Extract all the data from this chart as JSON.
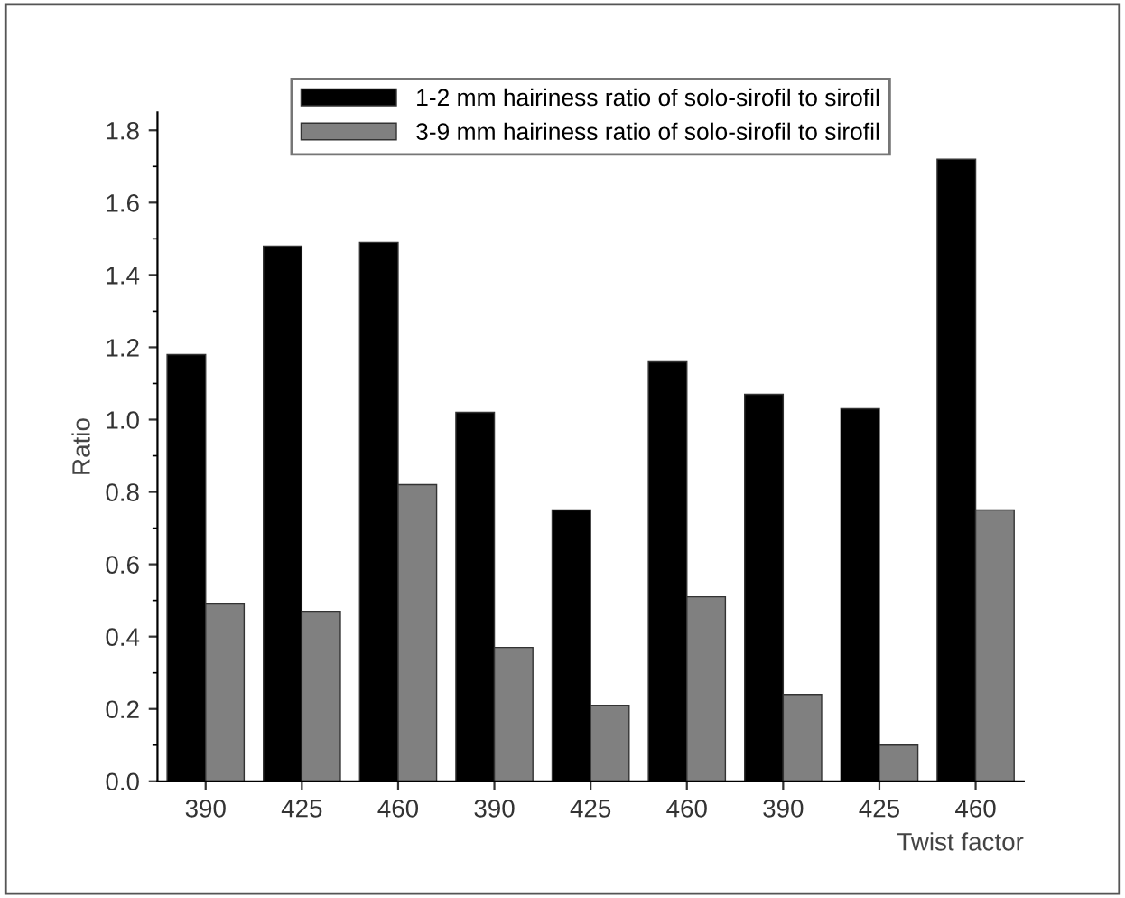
{
  "chart_data": {
    "type": "bar",
    "xlabel": "Twist factor",
    "ylabel": "Ratio",
    "categories": [
      "390",
      "425",
      "460",
      "390",
      "425",
      "460",
      "390",
      "425",
      "460"
    ],
    "series": [
      {
        "name": "1-2 mm hairiness ratio of solo-sirofil to sirofil",
        "color": "#000000",
        "values": [
          1.18,
          1.48,
          1.49,
          1.02,
          0.75,
          1.16,
          1.07,
          1.03,
          1.72
        ]
      },
      {
        "name": "3-9 mm hairiness ratio of solo-sirofil to sirofil",
        "color": "#808080",
        "values": [
          0.49,
          0.47,
          0.82,
          0.37,
          0.21,
          0.51,
          0.24,
          0.1,
          0.75
        ]
      }
    ],
    "ylim": [
      0,
      1.85
    ],
    "yticks": [
      {
        "value": 0,
        "label": "0.0"
      },
      0.2,
      0.4,
      0.6,
      0.8,
      {
        "value": 1,
        "label": "1.0"
      },
      1.2,
      1.4,
      1.6,
      1.8
    ],
    "grid": false,
    "legend": "top"
  }
}
